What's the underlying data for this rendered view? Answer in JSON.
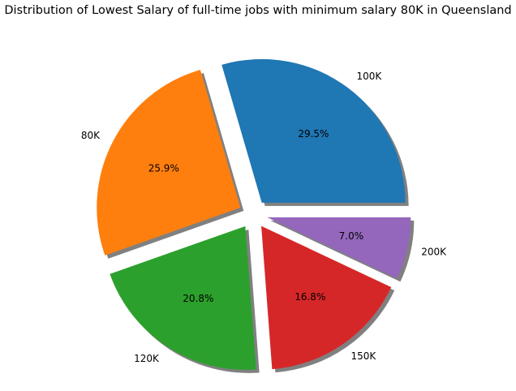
{
  "chart_data": {
    "type": "pie",
    "title": "Distribution of Lowest Salary of full-time jobs with minimum salary 80K in Queensland",
    "slices": [
      {
        "label": "100K",
        "pct_text": "29.5%",
        "value": 29.5,
        "color": "#1f77b4"
      },
      {
        "label": "80K",
        "pct_text": "25.9%",
        "value": 25.9,
        "color": "#ff7f0e"
      },
      {
        "label": "120K",
        "pct_text": "20.8%",
        "value": 20.8,
        "color": "#2ca02c"
      },
      {
        "label": "150K",
        "pct_text": "16.8%",
        "value": 16.8,
        "color": "#d62728"
      },
      {
        "label": "200K",
        "pct_text": "7.0%",
        "value": 7.0,
        "color": "#9467bd"
      }
    ],
    "start_angle_deg": 0,
    "direction": "counterclockwise",
    "exploded": true,
    "shadow": true,
    "shadow_color": "#808080"
  }
}
